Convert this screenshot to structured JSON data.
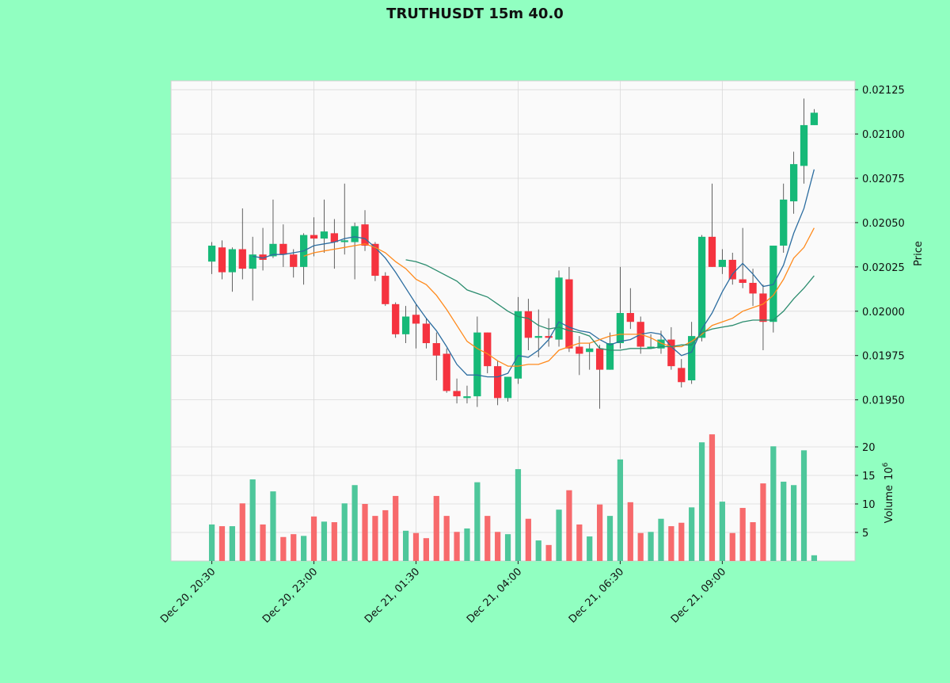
{
  "chart_data": {
    "type": "candlestick",
    "title": "TRUTHUSDT 15m 40.0",
    "ylabel": "Price",
    "volume_label": "Volume",
    "volume_scale_base": "10",
    "volume_scale_exponent": "6",
    "up_color": "#16b978",
    "down_color": "#f5333f",
    "up_volume_color": "#4ec79b",
    "down_volume_color": "#f76a6c",
    "wick_color": "#3a3a3a",
    "grid": true,
    "xlim": [
      -4,
      63
    ],
    "xticks": [
      {
        "value": 0,
        "label": "Dec 20, 20:30"
      },
      {
        "value": 10,
        "label": "Dec 20, 23:00"
      },
      {
        "value": 20,
        "label": "Dec 21, 01:30"
      },
      {
        "value": 30,
        "label": "Dec 21, 04:00"
      },
      {
        "value": 40,
        "label": "Dec 21, 06:30"
      },
      {
        "value": 50,
        "label": "Dec 21, 09:00"
      }
    ],
    "ylim": [
      0.0194,
      0.0213
    ],
    "yticks": [
      {
        "value": 0.0195,
        "label": "0.01950"
      },
      0.01975,
      {
        "value": 0.02,
        "label": "0.02000"
      },
      0.02025,
      {
        "value": 0.0205,
        "label": "0.02050"
      },
      0.02075,
      {
        "value": 0.021,
        "label": "0.02100"
      },
      0.02125
    ],
    "volume_ylim": [
      0,
      22.5
    ],
    "volume_ticks": [
      5,
      10,
      15,
      20
    ],
    "open": [
      0.02028,
      0.02036,
      0.02022,
      0.02035,
      0.02024,
      0.02032,
      0.02031,
      0.02038,
      0.02032,
      0.02025,
      0.02043,
      0.02041,
      0.02044,
      0.02039,
      0.02039,
      0.02049,
      0.02038,
      0.0202,
      0.02004,
      0.01987,
      0.01998,
      0.01993,
      0.01982,
      0.01976,
      0.01955,
      0.01951,
      0.01952,
      0.01988,
      0.01969,
      0.01951,
      0.01962,
      0.02,
      0.01985,
      0.01986,
      0.01984,
      0.02018,
      0.0198,
      0.01977,
      0.01979,
      0.01967,
      0.01982,
      0.01999,
      0.01994,
      0.01979,
      0.01979,
      0.01984,
      0.01968,
      0.01961,
      0.01985,
      0.02042,
      0.02025,
      0.02029,
      0.02018,
      0.02016,
      0.0201,
      0.01994,
      0.02037,
      0.02062,
      0.02082,
      0.02105
    ],
    "high": [
      0.02039,
      0.0204,
      0.02036,
      0.02058,
      0.02042,
      0.02047,
      0.02063,
      0.02049,
      0.02035,
      0.02044,
      0.02053,
      0.02063,
      0.02052,
      0.02072,
      0.0205,
      0.02057,
      0.02039,
      0.02022,
      0.02005,
      0.02003,
      0.02004,
      0.01996,
      0.01988,
      0.01979,
      0.01962,
      0.01958,
      0.01997,
      0.01988,
      0.01972,
      0.01963,
      0.02008,
      0.02007,
      0.02001,
      0.01996,
      0.02023,
      0.02025,
      0.01986,
      0.01982,
      0.01981,
      0.01988,
      0.02025,
      0.02013,
      0.01997,
      0.01987,
      0.01989,
      0.01991,
      0.01973,
      0.01994,
      0.02043,
      0.02072,
      0.02035,
      0.02033,
      0.02047,
      0.02024,
      0.02015,
      0.02037,
      0.02072,
      0.0209,
      0.0212,
      0.02114
    ],
    "low": [
      0.02021,
      0.02018,
      0.02011,
      0.02018,
      0.02006,
      0.02023,
      0.0203,
      0.02025,
      0.02019,
      0.02015,
      0.02031,
      0.02033,
      0.02024,
      0.02032,
      0.02018,
      0.02034,
      0.02017,
      0.02003,
      0.01985,
      0.01982,
      0.01979,
      0.01979,
      0.01961,
      0.01954,
      0.01948,
      0.01948,
      0.01946,
      0.01965,
      0.01947,
      0.01949,
      0.01959,
      0.01978,
      0.01974,
      0.0198,
      0.0198,
      0.01977,
      0.01964,
      0.01967,
      0.01945,
      0.01967,
      0.01979,
      0.0199,
      0.01976,
      0.01979,
      0.01976,
      0.01967,
      0.01957,
      0.01959,
      0.01983,
      0.02025,
      0.02021,
      0.02015,
      0.02013,
      0.02003,
      0.01978,
      0.01988,
      0.02033,
      0.02055,
      0.02072,
      0.02105
    ],
    "close": [
      0.02037,
      0.02022,
      0.02035,
      0.02024,
      0.02032,
      0.02029,
      0.02038,
      0.02032,
      0.02025,
      0.02043,
      0.02041,
      0.02045,
      0.02039,
      0.0204,
      0.02048,
      0.02037,
      0.0202,
      0.02004,
      0.01987,
      0.01997,
      0.01993,
      0.01982,
      0.01975,
      0.01955,
      0.01952,
      0.01952,
      0.01988,
      0.01969,
      0.01951,
      0.01963,
      0.02,
      0.01985,
      0.01986,
      0.01985,
      0.02019,
      0.01979,
      0.01976,
      0.01979,
      0.01967,
      0.01982,
      0.01999,
      0.01994,
      0.0198,
      0.0198,
      0.01984,
      0.01969,
      0.0196,
      0.01986,
      0.02042,
      0.02025,
      0.02029,
      0.02018,
      0.02016,
      0.0201,
      0.01994,
      0.02037,
      0.02063,
      0.02083,
      0.02105,
      0.02112
    ],
    "volume": [
      6.4,
      6.1,
      6.1,
      10.1,
      14.3,
      6.4,
      12.2,
      4.2,
      4.7,
      4.4,
      7.8,
      6.9,
      6.8,
      10.1,
      13.3,
      10,
      7.9,
      8.9,
      11.4,
      5.3,
      4.9,
      4,
      11.4,
      7.9,
      5.1,
      5.7,
      13.8,
      7.9,
      5.1,
      4.7,
      16.1,
      7.4,
      3.6,
      2.8,
      9,
      12.4,
      6.4,
      4.3,
      9.9,
      7.9,
      17.8,
      10.3,
      4.9,
      5.1,
      7.4,
      6.1,
      6.7,
      9.4,
      20.8,
      22.2,
      10.4,
      4.9,
      9.3,
      6.8,
      13.6,
      20.1,
      13.9,
      13.3,
      19.4,
      1
    ],
    "moving_averages": [
      {
        "color": "#2c6da0",
        "values": [
          null,
          null,
          null,
          null,
          0.02031,
          0.0203,
          0.02032,
          0.02032,
          0.02033,
          0.02034,
          0.02037,
          0.02038,
          0.02039,
          0.02041,
          0.02042,
          0.02041,
          0.02036,
          0.0203,
          0.02022,
          0.02013,
          0.02004,
          0.01996,
          0.01989,
          0.0198,
          0.0197,
          0.01964,
          0.01964,
          0.01963,
          0.01963,
          0.01965,
          0.01975,
          0.01974,
          0.01978,
          0.01984,
          0.01994,
          0.01991,
          0.01989,
          0.01988,
          0.01984,
          0.01981,
          0.01983,
          0.01984,
          0.01987,
          0.01988,
          0.01987,
          0.0198,
          0.01975,
          0.01977,
          0.0199,
          0.01999,
          0.02011,
          0.02021,
          0.02027,
          0.02021,
          0.02014,
          0.02015,
          0.02026,
          0.02044,
          0.02058,
          0.0208
        ]
      },
      {
        "color": "#ff8a1c",
        "values": [
          null,
          null,
          null,
          null,
          null,
          null,
          null,
          null,
          null,
          0.02031,
          0.02033,
          0.02034,
          0.02035,
          0.02036,
          0.02037,
          0.02038,
          0.02036,
          0.02033,
          0.02028,
          0.02024,
          0.02018,
          0.02015,
          0.02009,
          0.02001,
          0.01992,
          0.01983,
          0.01979,
          0.01976,
          0.01972,
          0.01969,
          0.01969,
          0.0197,
          0.0197,
          0.01972,
          0.01978,
          0.0198,
          0.01982,
          0.01982,
          0.01984,
          0.01986,
          0.01987,
          0.01987,
          0.01987,
          0.01985,
          0.01982,
          0.0198,
          0.0198,
          0.01983,
          0.01987,
          0.01992,
          0.01994,
          0.01996,
          0.02,
          0.02002,
          0.02004,
          0.02009,
          0.02018,
          0.0203,
          0.02036,
          0.02047
        ]
      },
      {
        "color": "#2b8c6e",
        "values": [
          null,
          null,
          null,
          null,
          null,
          null,
          null,
          null,
          null,
          null,
          null,
          null,
          null,
          null,
          null,
          null,
          null,
          null,
          null,
          0.02029,
          0.02028,
          0.02026,
          0.02023,
          0.0202,
          0.02017,
          0.02012,
          0.0201,
          0.02008,
          0.02004,
          0.02,
          0.01997,
          0.01996,
          0.01992,
          0.0199,
          0.01991,
          0.01989,
          0.01988,
          0.01986,
          0.01979,
          0.01978,
          0.01978,
          0.01979,
          0.01979,
          0.01979,
          0.0198,
          0.0198,
          0.01981,
          0.01981,
          0.01988,
          0.0199,
          0.01991,
          0.01992,
          0.01994,
          0.01995,
          0.01995,
          0.01995,
          0.02,
          0.02007,
          0.02013,
          0.0202
        ]
      }
    ]
  }
}
